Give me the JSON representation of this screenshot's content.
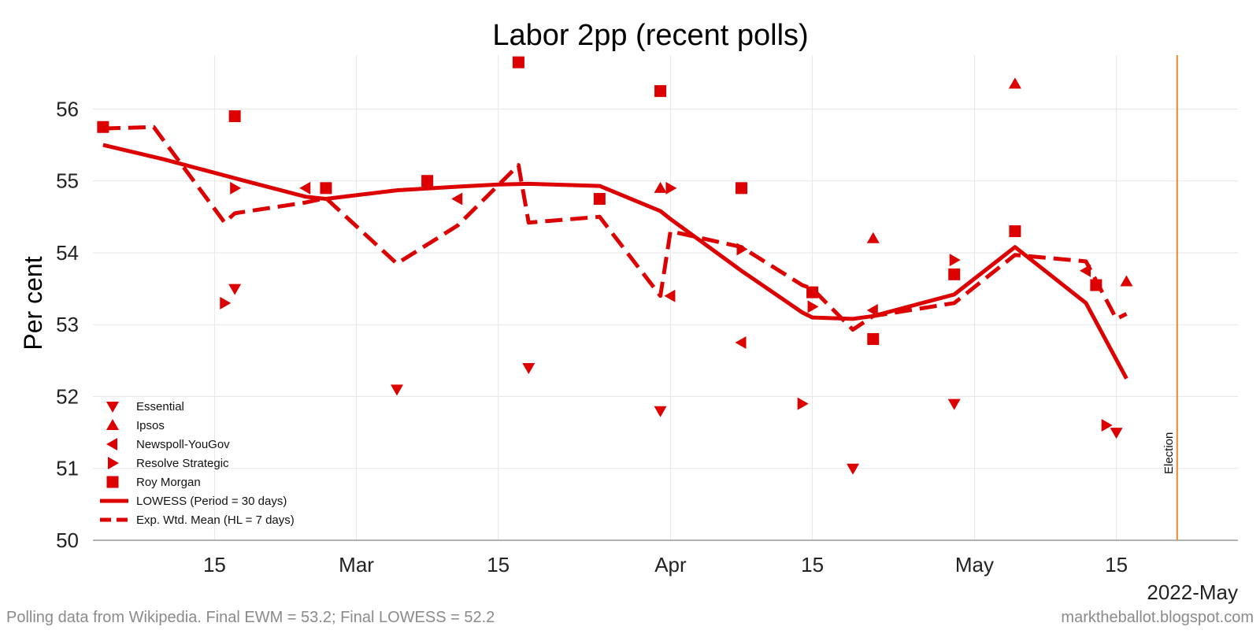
{
  "chart_data": {
    "type": "scatter",
    "title": "Labor 2pp (recent polls)",
    "xlabel": "",
    "ylabel": "Per cent",
    "x_axis_suffix": "2022-May",
    "xlim": [
      "2022-02-03",
      "2022-05-27"
    ],
    "ylim": [
      50,
      56.75
    ],
    "yticks": [
      50,
      51,
      52,
      53,
      54,
      55,
      56
    ],
    "xticks": [
      {
        "date": "2022-02-15",
        "label": "15"
      },
      {
        "date": "2022-03-01",
        "label": "Mar"
      },
      {
        "date": "2022-03-15",
        "label": "15"
      },
      {
        "date": "2022-04-01",
        "label": "Apr"
      },
      {
        "date": "2022-04-15",
        "label": "15"
      },
      {
        "date": "2022-05-01",
        "label": "May"
      },
      {
        "date": "2022-05-15",
        "label": "15"
      }
    ],
    "grid": true,
    "legend_position": "bottom-left",
    "series": [
      {
        "name": "Essential",
        "marker": "triangle-down",
        "color": "#dd0000",
        "points": [
          [
            "2022-02-17",
            53.5
          ],
          [
            "2022-03-05",
            52.1
          ],
          [
            "2022-03-18",
            52.4
          ],
          [
            "2022-03-31",
            51.8
          ],
          [
            "2022-04-19",
            51.0
          ],
          [
            "2022-04-29",
            51.9
          ],
          [
            "2022-05-15",
            51.5
          ]
        ]
      },
      {
        "name": "Ipsos",
        "marker": "triangle-up",
        "color": "#dd0000",
        "points": [
          [
            "2022-03-31",
            54.9
          ],
          [
            "2022-04-21",
            54.2
          ],
          [
            "2022-05-05",
            56.35
          ],
          [
            "2022-05-16",
            53.6
          ]
        ]
      },
      {
        "name": "Newspoll-YouGov",
        "marker": "triangle-left",
        "color": "#dd0000",
        "points": [
          [
            "2022-02-24",
            54.9
          ],
          [
            "2022-03-11",
            54.75
          ],
          [
            "2022-04-01",
            53.4
          ],
          [
            "2022-04-08",
            52.75
          ],
          [
            "2022-04-21",
            53.2
          ],
          [
            "2022-05-12",
            53.75
          ]
        ]
      },
      {
        "name": "Resolve Strategic",
        "marker": "triangle-right",
        "color": "#dd0000",
        "points": [
          [
            "2022-02-16",
            53.3
          ],
          [
            "2022-02-17",
            54.9
          ],
          [
            "2022-04-01",
            54.9
          ],
          [
            "2022-04-08",
            54.05
          ],
          [
            "2022-04-14",
            51.9
          ],
          [
            "2022-04-15",
            53.25
          ],
          [
            "2022-04-29",
            53.9
          ],
          [
            "2022-05-14",
            51.6
          ]
        ]
      },
      {
        "name": "Roy Morgan",
        "marker": "square",
        "color": "#dd0000",
        "points": [
          [
            "2022-02-04",
            55.75
          ],
          [
            "2022-02-17",
            55.9
          ],
          [
            "2022-02-26",
            54.9
          ],
          [
            "2022-03-08",
            55.0
          ],
          [
            "2022-03-17",
            56.65
          ],
          [
            "2022-03-25",
            54.75
          ],
          [
            "2022-03-31",
            56.25
          ],
          [
            "2022-04-08",
            54.9
          ],
          [
            "2022-04-15",
            53.45
          ],
          [
            "2022-04-21",
            52.8
          ],
          [
            "2022-04-29",
            53.7
          ],
          [
            "2022-05-05",
            54.3
          ],
          [
            "2022-05-13",
            53.55
          ]
        ]
      },
      {
        "name": "LOWESS (Period = 30 days)",
        "line": "solid",
        "color": "#dd0000",
        "points": [
          [
            "2022-02-04",
            55.5
          ],
          [
            "2022-02-10",
            55.3
          ],
          [
            "2022-02-18",
            55.0
          ],
          [
            "2022-02-24",
            54.78
          ],
          [
            "2022-02-26",
            54.75
          ],
          [
            "2022-03-05",
            54.87
          ],
          [
            "2022-03-11",
            54.92
          ],
          [
            "2022-03-15",
            54.95
          ],
          [
            "2022-03-18",
            54.96
          ],
          [
            "2022-03-25",
            54.93
          ],
          [
            "2022-03-31",
            54.58
          ],
          [
            "2022-04-01",
            54.47
          ],
          [
            "2022-04-08",
            53.75
          ],
          [
            "2022-04-14",
            53.17
          ],
          [
            "2022-04-15",
            53.1
          ],
          [
            "2022-04-19",
            53.08
          ],
          [
            "2022-04-21",
            53.12
          ],
          [
            "2022-04-29",
            53.42
          ],
          [
            "2022-05-05",
            54.08
          ],
          [
            "2022-05-12",
            53.3
          ],
          [
            "2022-05-16",
            52.25
          ]
        ]
      },
      {
        "name": "Exp. Wtd. Mean (HL = 7 days)",
        "line": "dashed",
        "color": "#dd0000",
        "points": [
          [
            "2022-02-04",
            55.73
          ],
          [
            "2022-02-09",
            55.75
          ],
          [
            "2022-02-16",
            54.42
          ],
          [
            "2022-02-17",
            54.55
          ],
          [
            "2022-02-24",
            54.7
          ],
          [
            "2022-02-26",
            54.76
          ],
          [
            "2022-03-05",
            53.85
          ],
          [
            "2022-03-11",
            54.38
          ],
          [
            "2022-03-17",
            55.22
          ],
          [
            "2022-03-18",
            54.42
          ],
          [
            "2022-03-25",
            54.5
          ],
          [
            "2022-03-31",
            53.4
          ],
          [
            "2022-04-01",
            54.3
          ],
          [
            "2022-04-08",
            54.08
          ],
          [
            "2022-04-14",
            53.55
          ],
          [
            "2022-04-15",
            53.5
          ],
          [
            "2022-04-19",
            52.93
          ],
          [
            "2022-04-21",
            53.12
          ],
          [
            "2022-04-29",
            53.3
          ],
          [
            "2022-05-05",
            53.97
          ],
          [
            "2022-05-12",
            53.88
          ],
          [
            "2022-05-15",
            53.08
          ],
          [
            "2022-05-16",
            53.15
          ]
        ]
      }
    ],
    "annotations": [
      {
        "text": "Election",
        "date": "2022-05-21",
        "line_color": "#e8892b"
      }
    ]
  },
  "caption": {
    "left": "Polling data from Wikipedia. Final EWM = 53.2; Final LOWESS = 52.2",
    "right": "marktheballot.blogspot.com"
  }
}
